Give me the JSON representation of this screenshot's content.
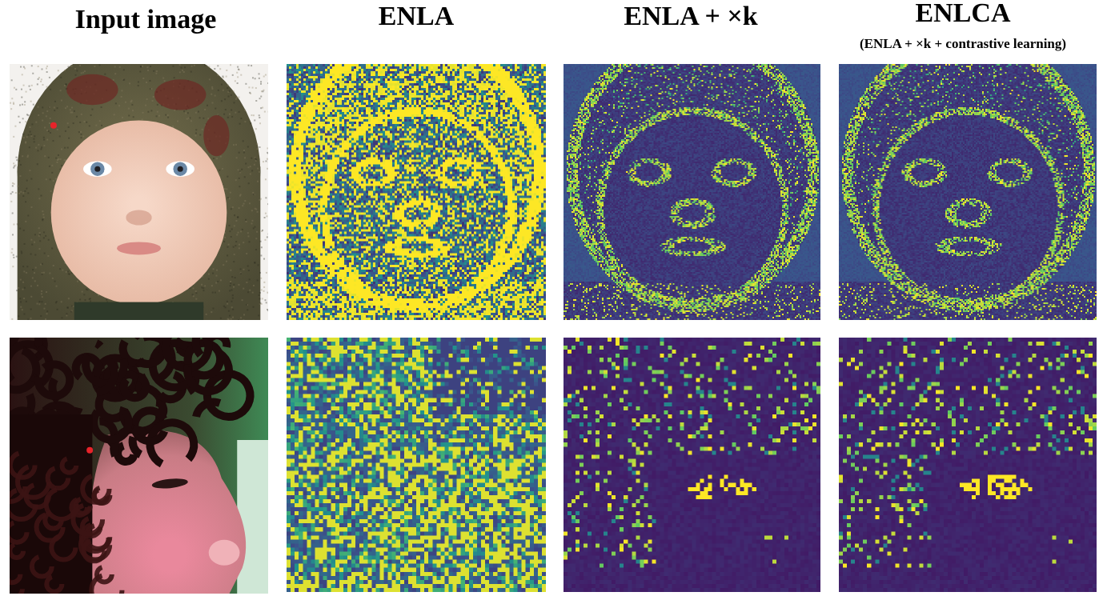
{
  "figure": {
    "columns": [
      {
        "id": "input",
        "title": "Input image",
        "subtitle": ""
      },
      {
        "id": "enla",
        "title": "ENLA",
        "subtitle": ""
      },
      {
        "id": "enla_k",
        "title": "ENLA + ×k",
        "subtitle": ""
      },
      {
        "id": "enlca",
        "title": "ENLCA",
        "subtitle": "(ENLA + ×k + contrastive learning)"
      }
    ],
    "rows": [
      {
        "id": "row1",
        "input": {
          "subject": "baby-knit-hat-face",
          "query_point_color": "#e8232a"
        },
        "maps": [
          "enla",
          "enla_k",
          "enlca"
        ]
      },
      {
        "id": "row2",
        "input": {
          "subject": "child-curly-hair-profile",
          "query_point_color": "#e8232a"
        },
        "maps": [
          "enla",
          "enla_k",
          "enlca"
        ]
      }
    ],
    "colormap": {
      "low": "#3b2a72",
      "mid": "#2a8c8c",
      "high": "#f6e620"
    }
  }
}
